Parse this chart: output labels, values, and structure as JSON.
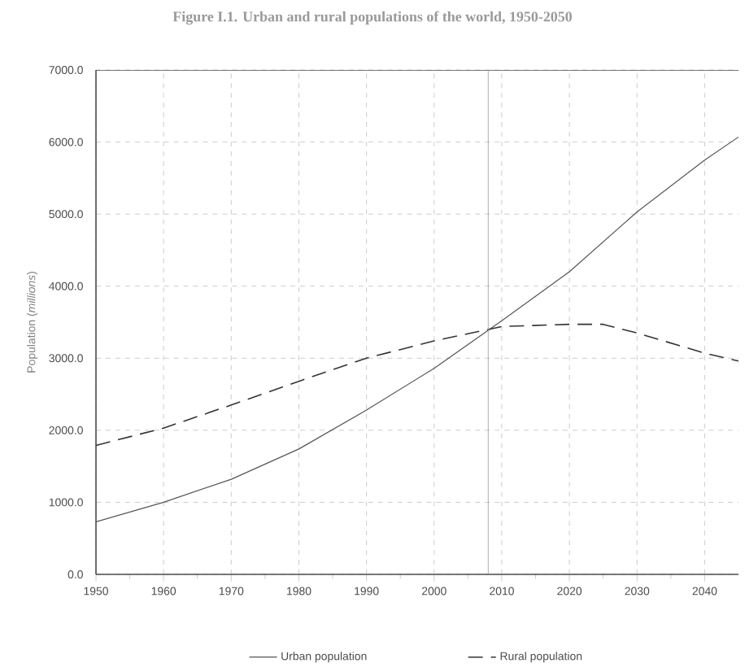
{
  "chart_data": {
    "type": "line",
    "title": "Figure I.1. Urban and rural populations of the world, 1950-2050",
    "ylabel": "Population (*millions*)",
    "xlim": [
      1950,
      2045
    ],
    "xticks": [
      1950,
      1960,
      1970,
      1980,
      1990,
      2000,
      2010,
      2020,
      2030,
      2040
    ],
    "ylim": [
      0,
      7000
    ],
    "yticks": [
      {
        "value": 0,
        "label": "0.0"
      },
      {
        "value": 1000,
        "label": "1000.0"
      },
      {
        "value": 2000,
        "label": "2000.0"
      },
      {
        "value": 3000,
        "label": "3000.0"
      },
      {
        "value": 4000,
        "label": "4000.0"
      },
      {
        "value": 5000,
        "label": "5000.0"
      },
      {
        "value": 6000,
        "label": "6000.0"
      },
      {
        "value": 7000,
        "label": "7000.0"
      }
    ],
    "grid": true,
    "legend": "bottom",
    "ref_lines": [
      {
        "axis": "x",
        "value": 2008,
        "color": "#999999"
      }
    ],
    "series": [
      {
        "name": "Urban population",
        "color": "#555555",
        "line_style": "solid",
        "x": [
          1950,
          1960,
          1970,
          1980,
          1990,
          2000,
          2010,
          2020,
          2030,
          2040,
          2045
        ],
        "values": [
          730,
          1000,
          1320,
          1740,
          2280,
          2860,
          3520,
          4200,
          5030,
          5750,
          6070
        ]
      },
      {
        "name": "Rural population",
        "color": "#333333",
        "line_style": "dashed",
        "x": [
          1950,
          1960,
          1970,
          1980,
          1990,
          2000,
          2010,
          2020,
          2025,
          2030,
          2040,
          2045
        ],
        "values": [
          1790,
          2030,
          2350,
          2680,
          3000,
          3240,
          3440,
          3470,
          3470,
          3350,
          3070,
          2960
        ]
      }
    ]
  }
}
